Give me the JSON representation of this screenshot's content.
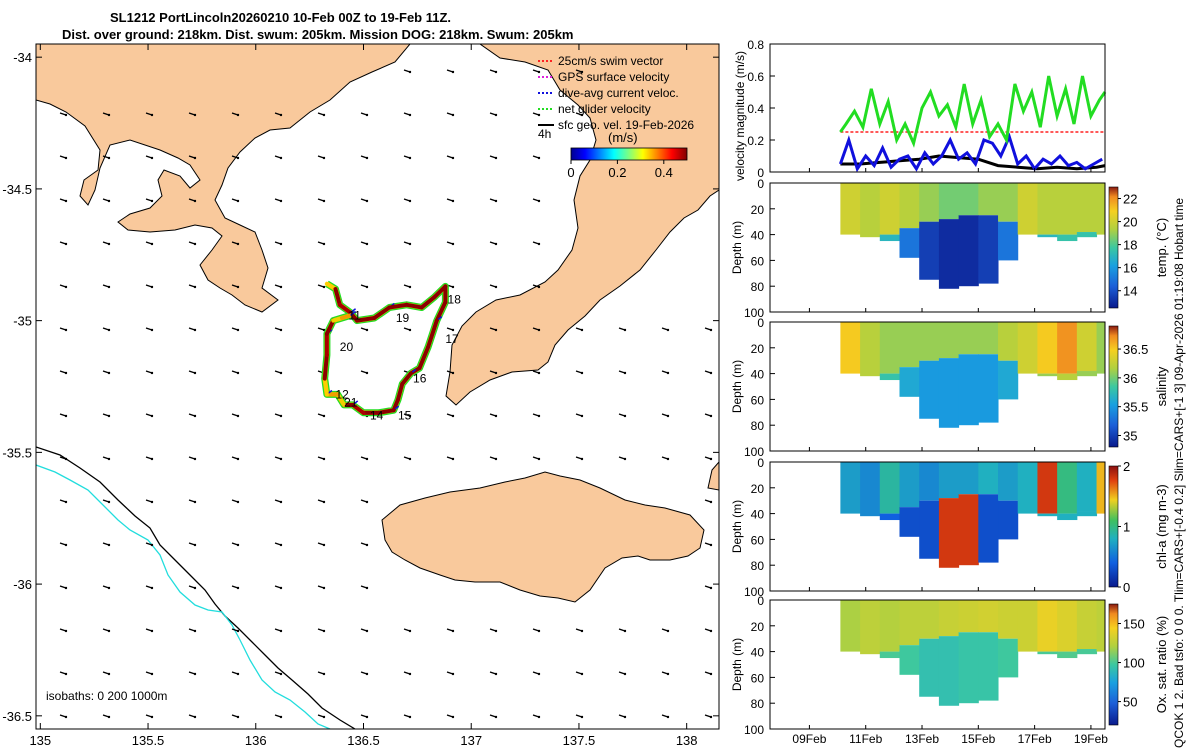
{
  "header": {
    "title_line1": "SL1212 PortLincoln20260210 10-Feb 00Z to 19-Feb 11Z.",
    "title_line2": "Dist. over ground: 218km. Dist. swum: 205km. Mission DOG: 218km. Swum: 205km"
  },
  "side_text": "QCOK 1  2. Bad tsfo: 0  0  0. Tlim=CARS+[-0.4 0.2] Slim=CARS+[-1 3] 09-Apr-2026 01:19:08 Hobart time",
  "colors": {
    "land": "#f9c99c",
    "track": "#8b0000",
    "cyan_isobath": "#22dddd",
    "net": "#22dd22",
    "dive": "#1010dd"
  },
  "chart_data": [
    {
      "type": "map",
      "name": "glider-track-map",
      "xlim": [
        134.98,
        138.15
      ],
      "ylim": [
        -36.55,
        -33.95
      ],
      "x_ticks": [
        135,
        135.5,
        136,
        136.5,
        137,
        137.5,
        138
      ],
      "x_tick_labels": [
        "135",
        "135.5",
        "136",
        "136.5",
        "137",
        "137.5",
        "138"
      ],
      "y_ticks": [
        -34,
        -34.5,
        -35,
        -35.5,
        -36,
        -36.5
      ],
      "y_tick_labels": [
        "-34",
        "-34.5",
        "-35",
        "-35.5",
        "-36",
        "-36.5"
      ],
      "isobath_label": "isobaths: 0   200  1000m",
      "legend": [
        {
          "label": "25cm/s swim vector",
          "color": "#ff2222"
        },
        {
          "label": "GPS surface velocity",
          "color": "#dd22dd"
        },
        {
          "label": "dive-avg current veloc.",
          "color": "#1010dd"
        },
        {
          "label": "net glider velocity",
          "color": "#22dd22"
        },
        {
          "label": "sfc geo. vel. 19-Feb-2026",
          "color": "#000000"
        }
      ],
      "colorbar": {
        "label": "(m/s)",
        "range": [
          0,
          0.5
        ],
        "ticks": [
          0,
          0.2,
          0.4
        ],
        "tick_labels": [
          "0",
          "0.2",
          "0.4"
        ]
      },
      "scale_label": "4h",
      "track": [
        [
          136.33,
          -34.86
        ],
        [
          136.37,
          -34.88
        ],
        [
          136.39,
          -34.94
        ],
        [
          136.44,
          -34.97
        ],
        [
          136.47,
          -35.0
        ],
        [
          136.55,
          -34.99
        ],
        [
          136.62,
          -34.95
        ],
        [
          136.7,
          -34.94
        ],
        [
          136.77,
          -34.95
        ],
        [
          136.83,
          -34.91
        ],
        [
          136.88,
          -34.87
        ],
        [
          136.88,
          -34.93
        ],
        [
          136.84,
          -35.0
        ],
        [
          136.8,
          -35.1
        ],
        [
          136.76,
          -35.18
        ],
        [
          136.72,
          -35.2
        ],
        [
          136.68,
          -35.24
        ],
        [
          136.66,
          -35.3
        ],
        [
          136.64,
          -35.34
        ],
        [
          136.57,
          -35.35
        ],
        [
          136.5,
          -35.35
        ],
        [
          136.45,
          -35.32
        ],
        [
          136.41,
          -35.32
        ],
        [
          136.38,
          -35.28
        ],
        [
          136.33,
          -35.28
        ],
        [
          136.32,
          -35.22
        ],
        [
          136.33,
          -35.13
        ],
        [
          136.33,
          -35.05
        ],
        [
          136.36,
          -35.0
        ],
        [
          136.4,
          -34.99
        ],
        [
          136.44,
          -34.98
        ]
      ],
      "day_labels": [
        {
          "text": "11",
          "lon": 136.43,
          "lat": -34.98
        },
        {
          "text": "19",
          "lon": 136.65,
          "lat": -34.99
        },
        {
          "text": "18",
          "lon": 136.89,
          "lat": -34.92
        },
        {
          "text": "17",
          "lon": 136.88,
          "lat": -35.07
        },
        {
          "text": "20",
          "lon": 136.39,
          "lat": -35.1
        },
        {
          "text": "16",
          "lon": 136.73,
          "lat": -35.22
        },
        {
          "text": "12",
          "lon": 136.37,
          "lat": -35.28
        },
        {
          "text": "21",
          "lon": 136.41,
          "lat": -35.31
        },
        {
          "text": "14",
          "lon": 136.53,
          "lat": -35.36
        },
        {
          "text": "15",
          "lon": 136.66,
          "lat": -35.36
        }
      ]
    },
    {
      "type": "line",
      "name": "velocity-magnitude",
      "ylabel": "velocity magnitude (m/s)",
      "ylim": [
        0,
        0.8
      ],
      "y_ticks": [
        0,
        0.2,
        0.4,
        0.6,
        0.8
      ],
      "y_tick_labels": [
        "0",
        "0.2",
        "0.4",
        "0.6",
        "0.8"
      ],
      "xlim": [
        7.6,
        19.5
      ],
      "series": [
        {
          "name": "net glider velocity",
          "color": "#22dd22",
          "x": [
            10.1,
            10.3,
            10.6,
            10.9,
            11.2,
            11.5,
            11.8,
            12.1,
            12.4,
            12.7,
            13.0,
            13.3,
            13.6,
            13.9,
            14.2,
            14.5,
            14.8,
            15.1,
            15.4,
            15.7,
            16.0,
            16.3,
            16.6,
            16.9,
            17.2,
            17.5,
            17.8,
            18.1,
            18.4,
            18.7,
            19.0,
            19.3,
            19.5
          ],
          "values": [
            0.25,
            0.3,
            0.38,
            0.28,
            0.52,
            0.3,
            0.44,
            0.2,
            0.3,
            0.18,
            0.4,
            0.5,
            0.35,
            0.42,
            0.28,
            0.55,
            0.3,
            0.45,
            0.22,
            0.3,
            0.2,
            0.55,
            0.38,
            0.5,
            0.28,
            0.6,
            0.35,
            0.52,
            0.3,
            0.6,
            0.35,
            0.45,
            0.5
          ]
        },
        {
          "name": "dive-avg current veloc.",
          "color": "#1010dd",
          "x": [
            10.1,
            10.4,
            10.7,
            11.0,
            11.3,
            11.6,
            11.9,
            12.2,
            12.5,
            12.8,
            13.1,
            13.4,
            13.7,
            14.0,
            14.3,
            14.6,
            14.9,
            15.2,
            15.5,
            15.8,
            16.1,
            16.4,
            16.7,
            17.0,
            17.3,
            17.6,
            17.9,
            18.2,
            18.5,
            18.8,
            19.1,
            19.4
          ],
          "values": [
            0.05,
            0.2,
            0.02,
            0.1,
            0.04,
            0.15,
            0.03,
            0.08,
            0.1,
            0.02,
            0.12,
            0.05,
            0.1,
            0.2,
            0.08,
            0.12,
            0.05,
            0.2,
            0.18,
            0.1,
            0.22,
            0.05,
            0.1,
            0.02,
            0.08,
            0.05,
            0.1,
            0.04,
            0.06,
            0.02,
            0.05,
            0.08
          ]
        },
        {
          "name": "sfc geo. vel.",
          "color": "#000000",
          "x": [
            10.1,
            10.8,
            11.5,
            12.2,
            12.9,
            13.6,
            14.3,
            15.0,
            15.7,
            16.4,
            17.1,
            17.8,
            18.5,
            19.2,
            19.5
          ],
          "values": [
            0.05,
            0.05,
            0.06,
            0.07,
            0.08,
            0.1,
            0.09,
            0.08,
            0.04,
            0.03,
            0.02,
            0.03,
            0.02,
            0.03,
            0.04
          ]
        },
        {
          "name": "25cm/s swim vector",
          "color": "#ff2222",
          "x": [
            10.1,
            19.5
          ],
          "values": [
            0.25,
            0.25
          ]
        }
      ]
    },
    {
      "type": "heatmap",
      "name": "temperature-section",
      "ylabel": "Depth (m)",
      "cbar_label": "temp. (°C)",
      "ylim": [
        100,
        0
      ],
      "y_ticks": [
        0,
        20,
        40,
        60,
        80,
        100
      ],
      "y_tick_labels": [
        "0",
        "20",
        "40",
        "60",
        "80",
        "100"
      ],
      "clim": [
        12.5,
        23
      ],
      "cbar_ticks": [
        14,
        16,
        18,
        20,
        22
      ],
      "cbar_tick_labels": [
        "14",
        "16",
        "18",
        "20",
        "22"
      ],
      "xlim": [
        7.6,
        19.5
      ],
      "x": [
        10.1,
        10.8,
        11.5,
        12.2,
        12.9,
        13.6,
        14.3,
        15.0,
        15.7,
        16.4,
        17.1,
        17.8,
        18.5,
        19.2,
        19.5
      ],
      "bottom_depth": [
        40,
        42,
        45,
        58,
        75,
        82,
        80,
        78,
        60,
        40,
        42,
        45,
        42,
        40,
        38
      ],
      "mixed_layer_depth": [
        40,
        42,
        40,
        35,
        30,
        28,
        25,
        25,
        30,
        40,
        40,
        40,
        38,
        40,
        38
      ],
      "surface_value": [
        20,
        19.5,
        20,
        19.5,
        19,
        18.5,
        18.5,
        19,
        19,
        20,
        19.5,
        19.5,
        19.5,
        19.5,
        19.5
      ],
      "bottom_value": [
        18,
        18,
        17,
        15,
        13.5,
        13,
        13,
        13.5,
        15,
        17,
        17,
        17.5,
        17.5,
        17,
        17
      ]
    },
    {
      "type": "heatmap",
      "name": "salinity-section",
      "ylabel": "Depth (m)",
      "cbar_label": "salinity",
      "ylim": [
        100,
        0
      ],
      "y_ticks": [
        0,
        20,
        40,
        60,
        80,
        100
      ],
      "y_tick_labels": [
        "0",
        "20",
        "40",
        "60",
        "80",
        "100"
      ],
      "clim": [
        34.8,
        36.9
      ],
      "cbar_ticks": [
        35,
        35.5,
        36,
        36.5
      ],
      "cbar_tick_labels": [
        "35",
        "35.5",
        "36",
        "36.5"
      ],
      "xlim": [
        7.6,
        19.5
      ],
      "x": [
        10.1,
        10.8,
        11.5,
        12.2,
        12.9,
        13.6,
        14.3,
        15.0,
        15.7,
        16.4,
        17.1,
        17.8,
        18.5,
        19.2,
        19.5
      ],
      "bottom_depth": [
        40,
        42,
        45,
        58,
        75,
        82,
        80,
        78,
        60,
        40,
        42,
        45,
        42,
        40,
        38
      ],
      "mixed_layer_depth": [
        40,
        42,
        40,
        35,
        30,
        28,
        25,
        25,
        30,
        40,
        40,
        40,
        38,
        40,
        38
      ],
      "surface_value": [
        36.5,
        36.2,
        36.1,
        36.1,
        36.1,
        36.1,
        36.1,
        36.1,
        36.2,
        36.3,
        36.5,
        36.7,
        36.3,
        36.1,
        36.1
      ],
      "bottom_value": [
        36,
        36,
        35.8,
        35.6,
        35.5,
        35.5,
        35.5,
        35.5,
        35.6,
        36,
        36.1,
        36.2,
        36.1,
        36,
        36
      ]
    },
    {
      "type": "heatmap",
      "name": "chlorophyll-section",
      "ylabel": "Depth (m)",
      "cbar_label": "chl-a (mg m-3)",
      "ylim": [
        100,
        0
      ],
      "y_ticks": [
        0,
        20,
        40,
        60,
        80,
        100
      ],
      "y_tick_labels": [
        "0",
        "20",
        "40",
        "60",
        "80",
        "100"
      ],
      "clim": [
        0,
        2
      ],
      "cbar_ticks": [
        0,
        1,
        2
      ],
      "cbar_tick_labels": [
        "0",
        "1",
        "2"
      ],
      "xlim": [
        7.6,
        19.5
      ],
      "x": [
        10.1,
        10.8,
        11.5,
        12.2,
        12.9,
        13.6,
        14.3,
        15.0,
        15.7,
        16.4,
        17.1,
        17.8,
        18.5,
        19.2,
        19.5
      ],
      "bottom_depth": [
        40,
        42,
        45,
        58,
        75,
        82,
        80,
        78,
        60,
        40,
        42,
        45,
        42,
        40,
        38
      ],
      "mixed_layer_depth": [
        40,
        42,
        40,
        35,
        30,
        28,
        25,
        25,
        30,
        40,
        40,
        40,
        38,
        40,
        38
      ],
      "surface_value": [
        0.7,
        0.6,
        0.9,
        0.7,
        0.6,
        0.7,
        0.7,
        0.8,
        0.7,
        0.8,
        1.8,
        1.0,
        0.8,
        1.5,
        1.6
      ],
      "bottom_value": [
        0.5,
        0.5,
        0.4,
        0.3,
        0.3,
        1.8,
        1.8,
        0.3,
        0.3,
        0.8,
        0.8,
        0.8,
        0.8,
        0.8,
        0.8
      ]
    },
    {
      "type": "heatmap",
      "name": "oxygen-section",
      "ylabel": "Depth (m)",
      "cbar_label": "Ox. sat. ratio (%)",
      "ylim": [
        100,
        0
      ],
      "y_ticks": [
        0,
        20,
        40,
        60,
        80,
        100
      ],
      "y_tick_labels": [
        "0",
        "20",
        "40",
        "60",
        "80",
        "100"
      ],
      "clim": [
        20,
        175
      ],
      "cbar_ticks": [
        50,
        100,
        150
      ],
      "cbar_tick_labels": [
        "50",
        "100",
        "150"
      ],
      "xlim": [
        7.6,
        19.5
      ],
      "x_ticks": [
        9,
        11,
        13,
        15,
        17,
        19
      ],
      "x_tick_labels": [
        "09Feb",
        "11Feb",
        "13Feb",
        "15Feb",
        "17Feb",
        "19Feb"
      ],
      "x": [
        10.1,
        10.8,
        11.5,
        12.2,
        12.9,
        13.6,
        14.3,
        15.0,
        15.7,
        16.4,
        17.1,
        17.8,
        18.5,
        19.2,
        19.5
      ],
      "bottom_depth": [
        40,
        42,
        45,
        58,
        75,
        82,
        80,
        78,
        60,
        40,
        42,
        45,
        42,
        40,
        38
      ],
      "mixed_layer_depth": [
        40,
        42,
        40,
        35,
        30,
        28,
        25,
        25,
        30,
        40,
        40,
        40,
        38,
        40,
        38
      ],
      "surface_value": [
        120,
        125,
        122,
        125,
        125,
        128,
        130,
        132,
        130,
        130,
        140,
        135,
        128,
        125,
        122
      ],
      "bottom_value": [
        100,
        100,
        100,
        98,
        92,
        92,
        95,
        95,
        98,
        100,
        100,
        102,
        100,
        100,
        100
      ]
    }
  ]
}
